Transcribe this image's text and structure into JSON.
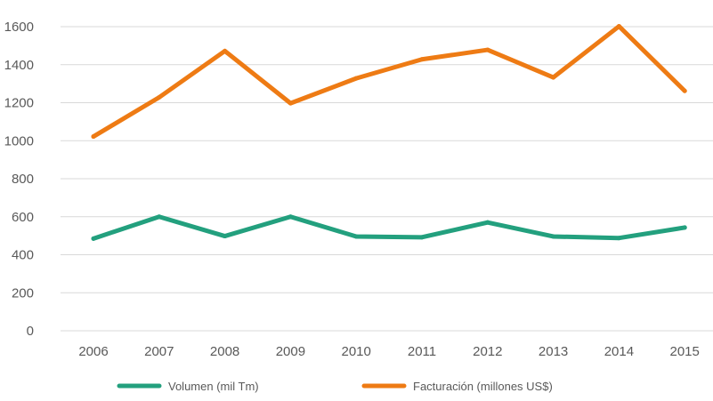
{
  "chart_data": {
    "type": "line",
    "categories": [
      "2006",
      "2007",
      "2008",
      "2009",
      "2010",
      "2011",
      "2012",
      "2013",
      "2014",
      "2015"
    ],
    "series": [
      {
        "name": "Volumen (mil Tm)",
        "color": "#23a07e",
        "values": [
          485,
          600,
          498,
          600,
          496,
          492,
          570,
          496,
          488,
          543
        ]
      },
      {
        "name": "Facturación (millones US$)",
        "color": "#ee7b14",
        "values": [
          1022,
          1228,
          1472,
          1197,
          1328,
          1428,
          1478,
          1333,
          1602,
          1262
        ]
      }
    ],
    "ylim": [
      0,
      1600
    ],
    "yticks": [
      "0",
      "200",
      "400",
      "600",
      "800",
      "1000",
      "1200",
      "1400",
      "1600"
    ],
    "grid": true,
    "legend_position": "bottom"
  }
}
